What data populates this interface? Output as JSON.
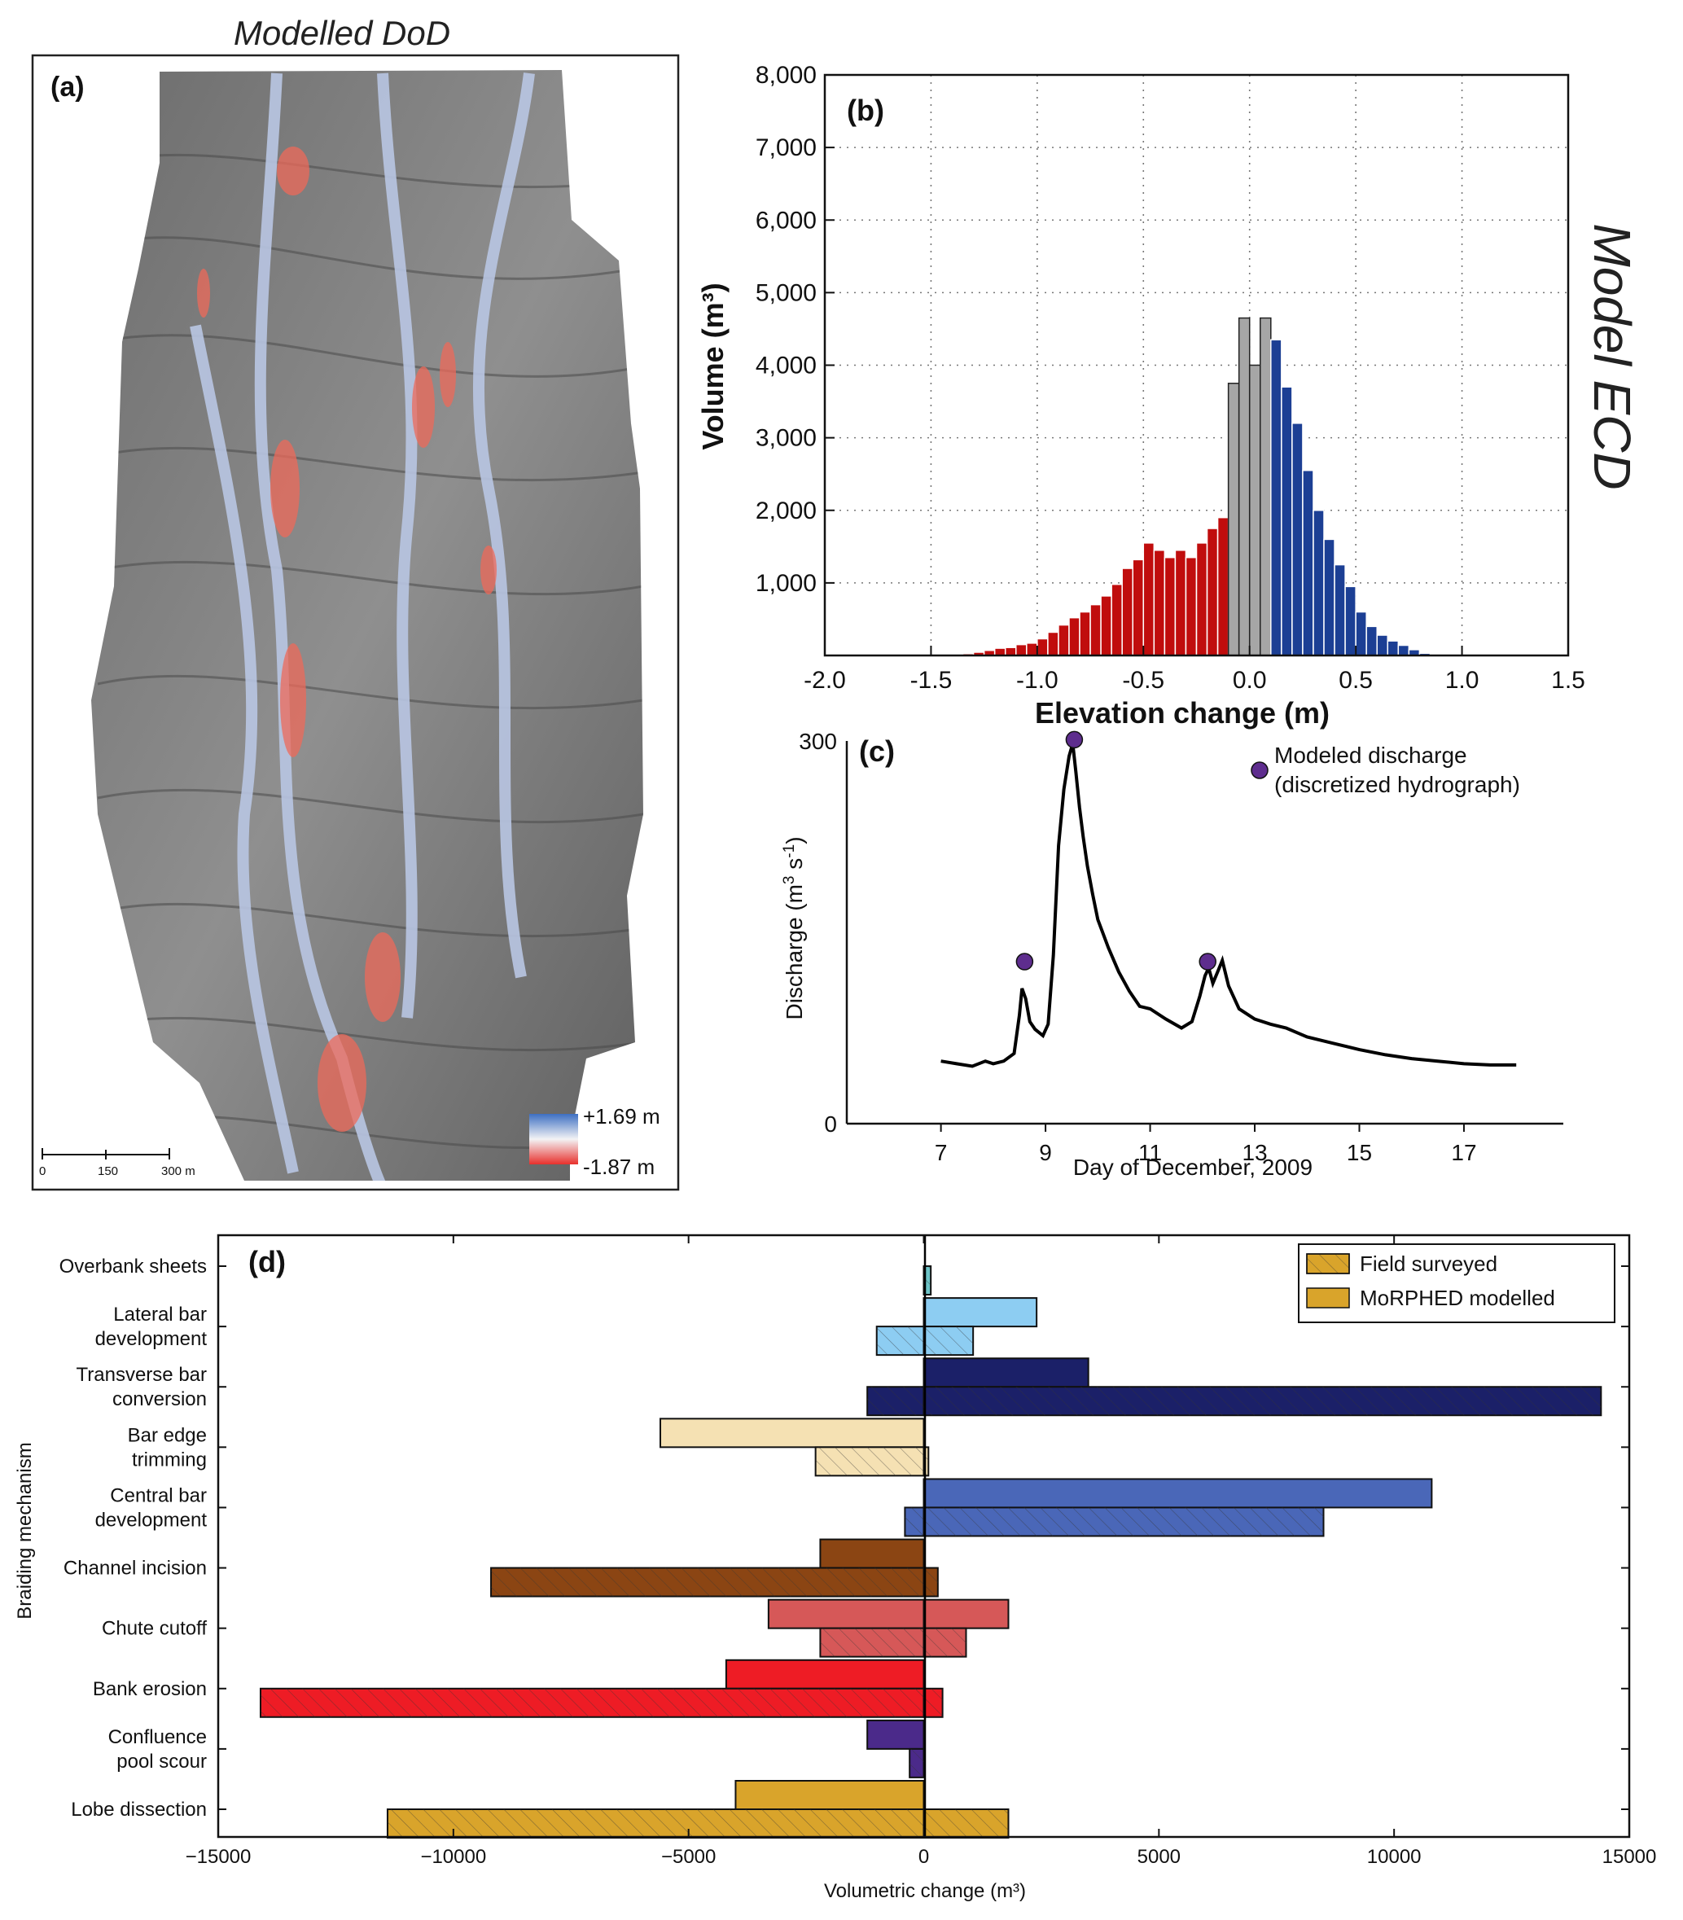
{
  "panel_a": {
    "title": "Modelled DoD",
    "label": "(a)",
    "legend_max": "+1.69 m",
    "legend_min": "-1.87 m",
    "scalebar_ticks": [
      "0",
      "150",
      "300 m"
    ],
    "colors": {
      "deposition": "#6e8fd0",
      "erosion": "#ee4a4a",
      "hillshade": "#8a8a8a"
    }
  },
  "side_label": "Model ECD",
  "chart_data": [
    {
      "id": "b",
      "type": "bar",
      "label": "(b)",
      "xlabel": "Elevation change (m)",
      "ylabel": "Volume  (m³)",
      "xlim": [
        -2.0,
        1.5
      ],
      "ylim": [
        0,
        8000
      ],
      "grid": true,
      "xticks": [
        -2.0,
        -1.5,
        -1.0,
        -0.5,
        0.0,
        0.5,
        1.0,
        1.5
      ],
      "xtick_labels": [
        "-2.0",
        "-1.5",
        "-1.0",
        "-0.5",
        "0.0",
        "0.5",
        "1.0",
        "1.5"
      ],
      "yticks": [
        1000,
        2000,
        3000,
        4000,
        5000,
        6000,
        7000,
        8000
      ],
      "ytick_labels": [
        "1,000",
        "2,000",
        "3,000",
        "4,000",
        "5,000",
        "6,000",
        "7,000",
        "8,000"
      ],
      "bin_width": 0.05,
      "colors": {
        "erosion": "#c00d0d",
        "neutral": "#a6a6a6",
        "deposition": "#1c3f94"
      },
      "bins_x": [
        -1.375,
        -1.325,
        -1.275,
        -1.225,
        -1.175,
        -1.125,
        -1.075,
        -1.025,
        -0.975,
        -0.925,
        -0.875,
        -0.825,
        -0.775,
        -0.725,
        -0.675,
        -0.625,
        -0.575,
        -0.525,
        -0.475,
        -0.425,
        -0.375,
        -0.325,
        -0.275,
        -0.225,
        -0.175,
        -0.125,
        -0.075,
        -0.025,
        0.025,
        0.075,
        0.125,
        0.175,
        0.225,
        0.275,
        0.325,
        0.375,
        0.425,
        0.475,
        0.525,
        0.575,
        0.625,
        0.675,
        0.725,
        0.775,
        0.825
      ],
      "volumes": [
        15,
        25,
        45,
        70,
        100,
        110,
        150,
        170,
        230,
        320,
        420,
        520,
        600,
        700,
        820,
        980,
        1200,
        1320,
        1550,
        1450,
        1350,
        1450,
        1350,
        1550,
        1750,
        1900,
        3750,
        4650,
        4000,
        4650,
        4350,
        3700,
        3200,
        2550,
        2000,
        1600,
        1250,
        950,
        600,
        400,
        280,
        200,
        140,
        80,
        30
      ],
      "classes": [
        "e",
        "e",
        "e",
        "e",
        "e",
        "e",
        "e",
        "e",
        "e",
        "e",
        "e",
        "e",
        "e",
        "e",
        "e",
        "e",
        "e",
        "e",
        "e",
        "e",
        "e",
        "e",
        "e",
        "e",
        "e",
        "e",
        "n",
        "n",
        "n",
        "n",
        "d",
        "d",
        "d",
        "d",
        "d",
        "d",
        "d",
        "d",
        "d",
        "d",
        "d",
        "d",
        "d",
        "d",
        "d"
      ]
    },
    {
      "id": "c",
      "type": "line",
      "label": "(c)",
      "xlabel": "Day of December, 2009",
      "ylabel": "Discharge (m³ s⁻¹)",
      "xlim": [
        5.2,
        18.9
      ],
      "ylim": [
        0,
        300
      ],
      "xticks": [
        7,
        9,
        11,
        13,
        15,
        17
      ],
      "xtick_labels": [
        "7",
        "9",
        "11",
        "13",
        "15",
        "17"
      ],
      "yticks": [
        0,
        300
      ],
      "ytick_labels": [
        "0",
        "300"
      ],
      "legend": "Modeled discharge\n(discretized hydrograph)",
      "legend_line1": "Modeled discharge",
      "legend_line2": "(discretized hydrograph)",
      "marker_color": "#5e2d8e",
      "series": {
        "x": [
          7.0,
          7.3,
          7.6,
          7.85,
          8.0,
          8.2,
          8.4,
          8.5,
          8.55,
          8.62,
          8.7,
          8.8,
          8.95,
          9.05,
          9.15,
          9.25,
          9.35,
          9.45,
          9.52,
          9.58,
          9.65,
          9.72,
          9.8,
          9.9,
          10.0,
          10.2,
          10.4,
          10.6,
          10.8,
          11.0,
          11.3,
          11.6,
          11.8,
          11.95,
          12.05,
          12.12,
          12.2,
          12.3,
          12.38,
          12.5,
          12.7,
          13.0,
          13.3,
          13.6,
          14.0,
          14.5,
          15.0,
          15.5,
          16.0,
          16.5,
          17.0,
          17.5,
          18.0
        ],
        "y": [
          49,
          47,
          45,
          49,
          47,
          49,
          55,
          85,
          106,
          98,
          80,
          74,
          69,
          78,
          132,
          218,
          262,
          288,
          298,
          276,
          248,
          225,
          202,
          180,
          160,
          138,
          119,
          104,
          92,
          90,
          82,
          75,
          80,
          100,
          116,
          122,
          110,
          120,
          128,
          108,
          90,
          82,
          78,
          75,
          68,
          63,
          58,
          54,
          51,
          49,
          47,
          46,
          46
        ]
      },
      "markers": {
        "x": [
          8.6,
          9.55,
          12.1
        ],
        "y": [
          127,
          301,
          127
        ]
      }
    },
    {
      "id": "d",
      "type": "bar",
      "orientation": "horizontal",
      "label": "(d)",
      "xlabel": "Volumetric change (m³)",
      "ylabel": "Braiding mechanism",
      "xlim": [
        -15000,
        15000
      ],
      "xticks": [
        -15000,
        -10000,
        -5000,
        0,
        5000,
        10000,
        15000
      ],
      "xtick_labels": [
        "−15000",
        "−10000",
        "−5000",
        "0",
        "5000",
        "10000",
        "15000"
      ],
      "legend": [
        "Field surveyed",
        "MoRPHED modelled"
      ],
      "legend_color": "#d9a42b",
      "categories": [
        "Overbank sheets",
        "Lateral bar development",
        "Transverse bar conversion",
        "Bar edge trimming",
        "Central bar development",
        "Channel incision",
        "Chute cutoff",
        "Bank erosion",
        "Confluence pool scour",
        "Lobe dissection"
      ],
      "category_lines": [
        [
          "Overbank sheets"
        ],
        [
          "Lateral bar",
          "development"
        ],
        [
          "Transverse bar",
          "conversion"
        ],
        [
          "Bar edge",
          "trimming"
        ],
        [
          "Central bar",
          "development"
        ],
        [
          "Channel incision"
        ],
        [
          "Chute cutoff"
        ],
        [
          "Bank erosion"
        ],
        [
          "Confluence",
          "pool scour"
        ],
        [
          "Lobe dissection"
        ]
      ],
      "colors": [
        "#6ec5c8",
        "#8dcdf2",
        "#1b2068",
        "#f5e1b3",
        "#4a67b8",
        "#8b4513",
        "#d65858",
        "#ee1c25",
        "#4b2a8a",
        "#d9a42b"
      ],
      "series": [
        {
          "name": "MoRPHED modelled",
          "pos": [
            0,
            2400,
            3500,
            0,
            10800,
            0,
            1800,
            0,
            0,
            0
          ],
          "neg": [
            0,
            0,
            0,
            -5600,
            0,
            -2200,
            -3300,
            -4200,
            -1200,
            -4000
          ]
        },
        {
          "name": "Field surveyed",
          "pos": [
            150,
            1050,
            14400,
            100,
            8500,
            300,
            900,
            400,
            0,
            1800
          ],
          "neg": [
            0,
            -1000,
            -1200,
            -2300,
            -400,
            -9200,
            -2200,
            -14100,
            -300,
            -11400
          ]
        }
      ]
    }
  ]
}
